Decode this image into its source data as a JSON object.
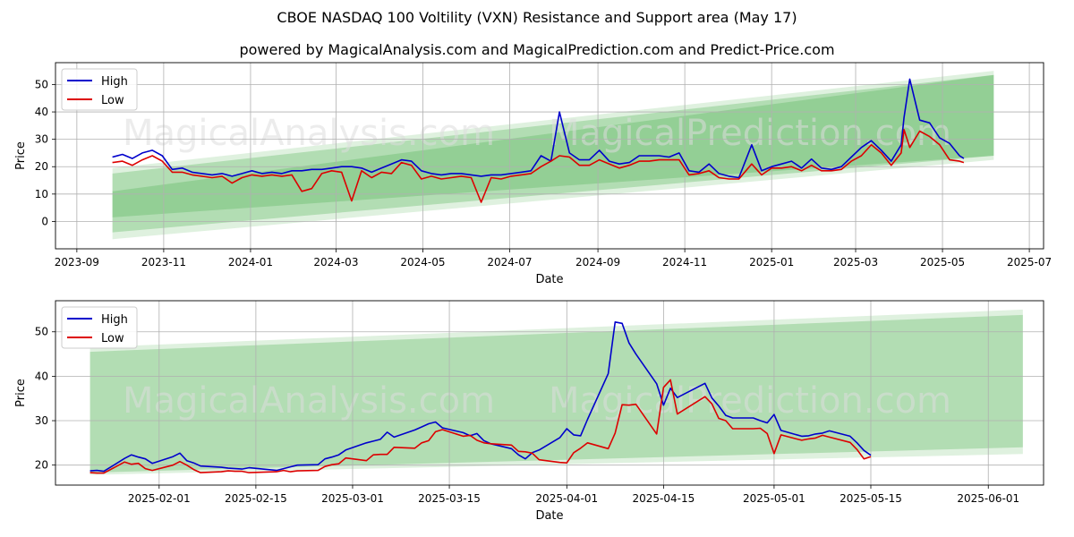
{
  "title": "CBOE NASDAQ 100 Voltility (VXN) Resistance and Support area (May 17)",
  "subtitle": "powered by MagicalAnalysis.com and MagicalPrediction.com and Predict-Price.com",
  "watermark": [
    "MagicalAnalysis.com",
    "MagicalPrediction.com"
  ],
  "colors": {
    "high": "#0000cc",
    "low": "#dd0000",
    "band": "#4caf50",
    "grid": "#b0b0b0"
  },
  "chart_data": [
    {
      "type": "line",
      "xlabel": "Date",
      "ylabel": "Price",
      "x_ticks": [
        "2023-09",
        "2023-11",
        "2024-01",
        "2024-03",
        "2024-05",
        "2024-07",
        "2024-09",
        "2024-11",
        "2025-01",
        "2025-03",
        "2025-05",
        "2025-07"
      ],
      "y_ticks": [
        0,
        10,
        20,
        30,
        40,
        50
      ],
      "xlim": [
        "2023-08-17",
        "2025-07-11"
      ],
      "ylim": [
        -10,
        58
      ],
      "legend": "top-left",
      "grid": true,
      "bands": [
        {
          "x": [
            "2023-09-26",
            "2025-06-06"
          ],
          "upper": [
            19.5,
            55
          ],
          "lower": [
            -6.5,
            22.5
          ],
          "opacity": 0.18
        },
        {
          "x": [
            "2023-09-26",
            "2025-06-06"
          ],
          "upper": [
            17.5,
            53.5
          ],
          "lower": [
            -4,
            24
          ],
          "opacity": 0.3
        },
        {
          "x": [
            "2023-09-26",
            "2025-06-06"
          ],
          "upper": [
            11,
            53.5
          ],
          "lower": [
            1.5,
            24
          ],
          "opacity": 0.3
        }
      ],
      "series": [
        {
          "name": "High",
          "color": "#0000cc",
          "x": [
            "2023-09-26",
            "2023-10-03",
            "2023-10-10",
            "2023-10-17",
            "2023-10-24",
            "2023-10-31",
            "2023-11-07",
            "2023-11-14",
            "2023-11-21",
            "2023-11-28",
            "2023-12-05",
            "2023-12-12",
            "2023-12-19",
            "2023-12-26",
            "2024-01-02",
            "2024-01-09",
            "2024-01-16",
            "2024-01-23",
            "2024-01-30",
            "2024-02-06",
            "2024-02-13",
            "2024-02-20",
            "2024-02-27",
            "2024-03-05",
            "2024-03-12",
            "2024-03-19",
            "2024-03-26",
            "2024-04-02",
            "2024-04-09",
            "2024-04-16",
            "2024-04-23",
            "2024-04-30",
            "2024-05-07",
            "2024-05-14",
            "2024-05-21",
            "2024-05-28",
            "2024-06-04",
            "2024-06-11",
            "2024-06-18",
            "2024-06-25",
            "2024-07-02",
            "2024-07-09",
            "2024-07-16",
            "2024-07-23",
            "2024-07-30",
            "2024-08-05",
            "2024-08-12",
            "2024-08-19",
            "2024-08-26",
            "2024-09-02",
            "2024-09-09",
            "2024-09-16",
            "2024-09-23",
            "2024-09-30",
            "2024-10-07",
            "2024-10-14",
            "2024-10-21",
            "2024-10-28",
            "2024-11-04",
            "2024-11-11",
            "2024-11-18",
            "2024-11-25",
            "2024-12-02",
            "2024-12-09",
            "2024-12-18",
            "2024-12-25",
            "2025-01-01",
            "2025-01-08",
            "2025-01-15",
            "2025-01-22",
            "2025-01-29",
            "2025-02-05",
            "2025-02-12",
            "2025-02-19",
            "2025-02-26",
            "2025-03-05",
            "2025-03-12",
            "2025-03-19",
            "2025-03-26",
            "2025-04-02",
            "2025-04-04",
            "2025-04-08",
            "2025-04-15",
            "2025-04-22",
            "2025-04-29",
            "2025-05-06",
            "2025-05-13",
            "2025-05-16"
          ],
          "values": [
            23.5,
            24.5,
            23,
            25,
            26,
            24,
            19,
            19.5,
            18,
            17.5,
            17,
            17.5,
            16.5,
            17.5,
            18.5,
            17.5,
            18,
            17.5,
            18.5,
            18.5,
            19,
            19,
            19.5,
            20,
            20,
            19.5,
            18,
            19.5,
            21,
            22.5,
            22,
            18.5,
            17.5,
            17,
            17.5,
            17.5,
            17,
            16.5,
            17,
            17,
            17.5,
            18,
            18.5,
            24,
            22,
            40,
            25,
            22.5,
            22.5,
            26,
            22,
            21,
            21.5,
            24,
            24,
            24,
            23.5,
            25,
            18.5,
            18,
            21,
            17.5,
            16.5,
            16,
            28,
            18.5,
            20,
            21,
            22,
            19.5,
            22.8,
            19.5,
            19,
            20,
            23.5,
            27,
            29.5,
            26,
            22,
            28,
            38,
            52,
            37,
            36,
            30.5,
            28.5,
            24,
            23
          ]
        },
        {
          "name": "Low",
          "color": "#dd0000",
          "x": [
            "2023-09-26",
            "2023-10-03",
            "2023-10-10",
            "2023-10-17",
            "2023-10-24",
            "2023-10-31",
            "2023-11-07",
            "2023-11-14",
            "2023-11-21",
            "2023-11-28",
            "2023-12-05",
            "2023-12-12",
            "2023-12-19",
            "2023-12-26",
            "2024-01-02",
            "2024-01-09",
            "2024-01-16",
            "2024-01-23",
            "2024-01-30",
            "2024-02-06",
            "2024-02-13",
            "2024-02-20",
            "2024-02-27",
            "2024-03-05",
            "2024-03-12",
            "2024-03-19",
            "2024-03-26",
            "2024-04-02",
            "2024-04-09",
            "2024-04-16",
            "2024-04-23",
            "2024-04-30",
            "2024-05-07",
            "2024-05-14",
            "2024-05-21",
            "2024-05-28",
            "2024-06-04",
            "2024-06-11",
            "2024-06-18",
            "2024-06-25",
            "2024-07-02",
            "2024-07-09",
            "2024-07-16",
            "2024-07-23",
            "2024-07-30",
            "2024-08-05",
            "2024-08-12",
            "2024-08-19",
            "2024-08-26",
            "2024-09-02",
            "2024-09-09",
            "2024-09-16",
            "2024-09-23",
            "2024-09-30",
            "2024-10-07",
            "2024-10-14",
            "2024-10-21",
            "2024-10-28",
            "2024-11-04",
            "2024-11-11",
            "2024-11-18",
            "2024-11-25",
            "2024-12-02",
            "2024-12-09",
            "2024-12-18",
            "2024-12-25",
            "2025-01-01",
            "2025-01-08",
            "2025-01-15",
            "2025-01-22",
            "2025-01-29",
            "2025-02-05",
            "2025-02-12",
            "2025-02-19",
            "2025-02-26",
            "2025-03-05",
            "2025-03-12",
            "2025-03-19",
            "2025-03-26",
            "2025-04-02",
            "2025-04-04",
            "2025-04-08",
            "2025-04-15",
            "2025-04-22",
            "2025-04-29",
            "2025-05-06",
            "2025-05-13",
            "2025-05-16"
          ],
          "values": [
            21.5,
            22,
            20.5,
            22.5,
            24,
            22,
            18,
            18,
            17,
            16.5,
            16,
            16.5,
            14,
            16,
            17,
            16.5,
            17,
            16.5,
            17,
            11,
            12,
            17.5,
            18.5,
            18,
            7.5,
            18.5,
            16,
            18,
            17.5,
            21.5,
            20.5,
            15.5,
            16.5,
            15.5,
            16,
            16.5,
            16,
            7,
            16,
            15.5,
            16.5,
            17,
            17.5,
            20,
            22,
            24,
            23.5,
            20.5,
            20.5,
            22.5,
            21,
            19.5,
            20.5,
            22,
            22,
            22.5,
            22.5,
            22.5,
            17,
            17.5,
            18.5,
            16,
            15.5,
            15.5,
            21,
            17,
            19.5,
            19.5,
            20,
            18.5,
            20.5,
            18.5,
            18.5,
            19,
            22,
            24,
            28,
            25,
            20.5,
            25,
            33.5,
            27,
            33,
            31,
            28,
            22.5,
            22,
            21.5
          ]
        }
      ]
    },
    {
      "type": "line",
      "xlabel": "Date",
      "ylabel": "Price",
      "x_ticks": [
        "2025-02-01",
        "2025-02-15",
        "2025-03-01",
        "2025-03-15",
        "2025-04-01",
        "2025-04-15",
        "2025-05-01",
        "2025-05-15",
        "2025-06-01"
      ],
      "y_ticks": [
        20,
        30,
        40,
        50
      ],
      "xlim": [
        "2025-01-17",
        "2025-06-09"
      ],
      "ylim": [
        15.5,
        57
      ],
      "legend": "top-left",
      "grid": true,
      "bands": [
        {
          "x": [
            "2025-01-22",
            "2025-06-06"
          ],
          "upper": [
            46.5,
            55
          ],
          "lower": [
            17.8,
            22.5
          ],
          "opacity": 0.18
        },
        {
          "x": [
            "2025-01-22",
            "2025-06-06"
          ],
          "upper": [
            45.5,
            53.8
          ],
          "lower": [
            18.3,
            24
          ],
          "opacity": 0.3
        }
      ],
      "series": [
        {
          "name": "High",
          "color": "#0000cc",
          "x": [
            "2025-01-22",
            "2025-01-23",
            "2025-01-24",
            "2025-01-27",
            "2025-01-28",
            "2025-01-29",
            "2025-01-30",
            "2025-01-31",
            "2025-02-03",
            "2025-02-04",
            "2025-02-05",
            "2025-02-06",
            "2025-02-07",
            "2025-02-10",
            "2025-02-11",
            "2025-02-12",
            "2025-02-13",
            "2025-02-14",
            "2025-02-18",
            "2025-02-19",
            "2025-02-20",
            "2025-02-21",
            "2025-02-24",
            "2025-02-25",
            "2025-02-26",
            "2025-02-27",
            "2025-02-28",
            "2025-03-03",
            "2025-03-04",
            "2025-03-05",
            "2025-03-06",
            "2025-03-07",
            "2025-03-10",
            "2025-03-11",
            "2025-03-12",
            "2025-03-13",
            "2025-03-14",
            "2025-03-17",
            "2025-03-18",
            "2025-03-19",
            "2025-03-20",
            "2025-03-21",
            "2025-03-24",
            "2025-03-25",
            "2025-03-26",
            "2025-03-27",
            "2025-03-28",
            "2025-03-31",
            "2025-04-01",
            "2025-04-02",
            "2025-04-03",
            "2025-04-04",
            "2025-04-07",
            "2025-04-08",
            "2025-04-09",
            "2025-04-10",
            "2025-04-11",
            "2025-04-14",
            "2025-04-15",
            "2025-04-16",
            "2025-04-17",
            "2025-04-21",
            "2025-04-22",
            "2025-04-23",
            "2025-04-24",
            "2025-04-25",
            "2025-04-28",
            "2025-04-29",
            "2025-04-30",
            "2025-05-01",
            "2025-05-02",
            "2025-05-05",
            "2025-05-06",
            "2025-05-07",
            "2025-05-08",
            "2025-05-09",
            "2025-05-12",
            "2025-05-13",
            "2025-05-14",
            "2025-05-15"
          ],
          "values": [
            18.7,
            18.8,
            18.6,
            21.5,
            22.3,
            21.8,
            21.4,
            20.4,
            21.9,
            22.7,
            21,
            20.5,
            19.8,
            19.5,
            19.3,
            19.2,
            19.1,
            19.4,
            18.8,
            19.2,
            19.6,
            20,
            20.1,
            21.4,
            21.8,
            22.3,
            23.4,
            25,
            25.4,
            25.8,
            27.4,
            26.3,
            27.9,
            28.6,
            29.3,
            29.7,
            28.4,
            27.3,
            26.6,
            27.1,
            25.5,
            24.8,
            23.7,
            22.3,
            21.4,
            22.8,
            23.4,
            26.2,
            28.2,
            26.8,
            26.6,
            30.3,
            40.6,
            52.2,
            51.9,
            47.5,
            45,
            38.3,
            33.5,
            37.3,
            35.2,
            38.4,
            35.1,
            33.3,
            31.2,
            30.6,
            30.6,
            30,
            29.5,
            31.4,
            27.8,
            26.5,
            26.6,
            27,
            27.2,
            27.7,
            26.5,
            25,
            23.3,
            22.2
          ]
        },
        {
          "name": "Low",
          "color": "#dd0000",
          "x": [
            "2025-01-22",
            "2025-01-23",
            "2025-01-24",
            "2025-01-27",
            "2025-01-28",
            "2025-01-29",
            "2025-01-30",
            "2025-01-31",
            "2025-02-03",
            "2025-02-04",
            "2025-02-05",
            "2025-02-06",
            "2025-02-07",
            "2025-02-10",
            "2025-02-11",
            "2025-02-12",
            "2025-02-13",
            "2025-02-14",
            "2025-02-18",
            "2025-02-19",
            "2025-02-20",
            "2025-02-21",
            "2025-02-24",
            "2025-02-25",
            "2025-02-26",
            "2025-02-27",
            "2025-02-28",
            "2025-03-03",
            "2025-03-04",
            "2025-03-05",
            "2025-03-06",
            "2025-03-07",
            "2025-03-10",
            "2025-03-11",
            "2025-03-12",
            "2025-03-13",
            "2025-03-14",
            "2025-03-17",
            "2025-03-18",
            "2025-03-19",
            "2025-03-20",
            "2025-03-21",
            "2025-03-24",
            "2025-03-25",
            "2025-03-26",
            "2025-03-27",
            "2025-03-28",
            "2025-03-31",
            "2025-04-01",
            "2025-04-02",
            "2025-04-03",
            "2025-04-04",
            "2025-04-07",
            "2025-04-08",
            "2025-04-09",
            "2025-04-10",
            "2025-04-11",
            "2025-04-14",
            "2025-04-15",
            "2025-04-16",
            "2025-04-17",
            "2025-04-21",
            "2025-04-22",
            "2025-04-23",
            "2025-04-24",
            "2025-04-25",
            "2025-04-28",
            "2025-04-29",
            "2025-04-30",
            "2025-05-01",
            "2025-05-02",
            "2025-05-05",
            "2025-05-06",
            "2025-05-07",
            "2025-05-08",
            "2025-05-09",
            "2025-05-12",
            "2025-05-13",
            "2025-05-14",
            "2025-05-15"
          ],
          "values": [
            18.3,
            18.2,
            18.2,
            20.7,
            20.2,
            20.4,
            19.2,
            18.8,
            20,
            20.8,
            20,
            19,
            18.3,
            18.5,
            18.7,
            18.6,
            18.6,
            18.3,
            18.5,
            18.8,
            18.5,
            18.7,
            18.8,
            19.7,
            20.1,
            20.3,
            21.6,
            21,
            22.3,
            22.4,
            22.4,
            24,
            23.8,
            25,
            25.5,
            27.5,
            28,
            26.5,
            26.7,
            25.6,
            25,
            24.8,
            24.5,
            23.1,
            23,
            22.7,
            21.2,
            20.6,
            20.5,
            22.8,
            23.8,
            25,
            23.7,
            27.2,
            33.6,
            33.5,
            33.7,
            27,
            37.5,
            39.2,
            31.5,
            35.4,
            33.8,
            30.5,
            30,
            28.2,
            28.2,
            28.3,
            27.1,
            22.6,
            26.8,
            25.6,
            25.9,
            26.1,
            26.7,
            26.3,
            25.1,
            23.5,
            21.4,
            21.9
          ]
        }
      ]
    }
  ]
}
